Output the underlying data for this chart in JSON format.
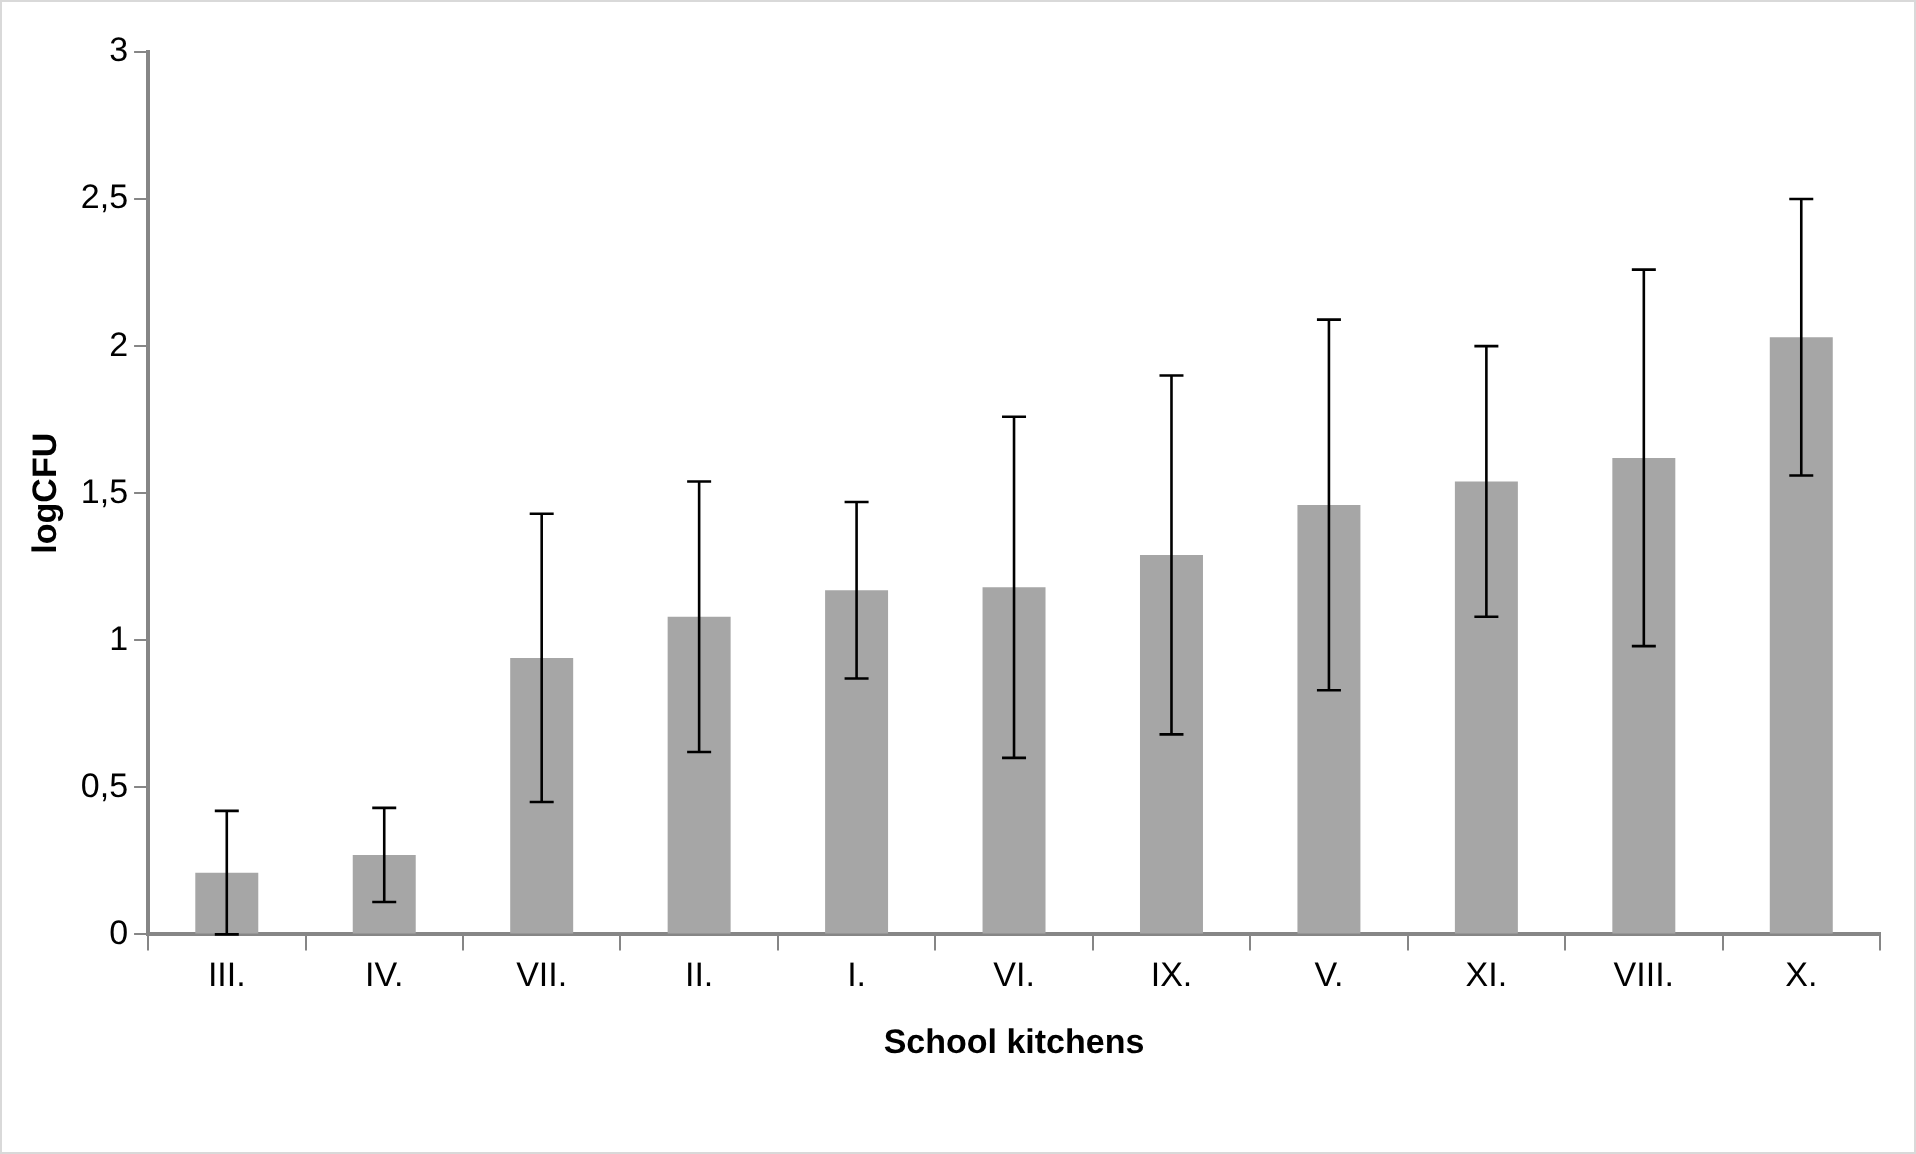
{
  "chart_data": {
    "type": "bar",
    "xlabel": "School kitchens",
    "ylabel": "logCFU",
    "categories": [
      "III.",
      "IV.",
      "VII.",
      "II.",
      "I.",
      "VI.",
      "IX.",
      "V.",
      "XI.",
      "VIII.",
      "X."
    ],
    "values": [
      0.21,
      0.27,
      0.94,
      1.08,
      1.17,
      1.18,
      1.29,
      1.46,
      1.54,
      1.62,
      2.03
    ],
    "errors": [
      0.21,
      0.16,
      0.49,
      0.46,
      0.3,
      0.58,
      0.61,
      0.63,
      0.46,
      0.64,
      0.47
    ],
    "color": "#a6a6a6",
    "ylim": [
      0,
      3
    ],
    "yticks": [
      0,
      {
        "value": 0.5,
        "label": "0,5"
      },
      1,
      {
        "value": 1.5,
        "label": "1,5"
      },
      2,
      {
        "value": 2.5,
        "label": "2,5"
      },
      3
    ],
    "grid": false,
    "legend": false
  }
}
